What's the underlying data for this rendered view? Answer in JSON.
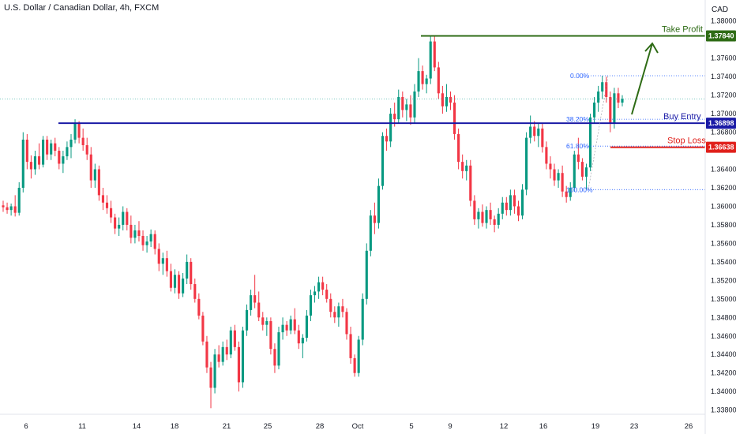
{
  "header": {
    "title": "U.S. Dollar / Canadian Dollar, 4h, FXCM",
    "currency": "CAD"
  },
  "chart_data": {
    "type": "candlestick",
    "instrument": "U.S. Dollar / Canadian Dollar",
    "timeframe": "4h",
    "source": "FXCM",
    "ylim": [
      1.3378,
      1.381
    ],
    "y_ticks": [
      "1.38000",
      "1.37840",
      "1.37600",
      "1.37400",
      "1.37200",
      "1.37000",
      "1.36898",
      "1.36800",
      "1.36638",
      "1.36400",
      "1.36200",
      "1.36000",
      "1.35800",
      "1.35600",
      "1.35400",
      "1.35200",
      "1.35000",
      "1.34800",
      "1.34600",
      "1.34400",
      "1.34200",
      "1.34000",
      "1.33800"
    ],
    "x_ticks": [
      "6",
      "11",
      "14",
      "18",
      "21",
      "25",
      "28",
      "Oct",
      "5",
      "9",
      "12",
      "16",
      "19",
      "23",
      "26"
    ],
    "levels": [
      {
        "name": "Take Profit",
        "value": 1.3784,
        "label": "1.37840",
        "color": "#2e6b15"
      },
      {
        "name": "Buy Entry",
        "value": 1.36898,
        "label": "1.36898",
        "color": "#1a1aa6"
      },
      {
        "name": "Stop Loss",
        "value": 1.36638,
        "label": "1.36638",
        "color": "#e0201b"
      }
    ],
    "fibonacci": [
      {
        "label": "0.00%",
        "value": 1.3741
      },
      {
        "label": "38.20%",
        "value": 1.3694
      },
      {
        "label": "61.80%",
        "value": 1.3665
      },
      {
        "label": "100.00%",
        "value": 1.3618
      }
    ],
    "ohlc": [
      [
        1.3601,
        1.3606,
        1.3594,
        1.3599
      ],
      [
        1.3599,
        1.3604,
        1.3592,
        1.3596
      ],
      [
        1.3596,
        1.3603,
        1.359,
        1.36
      ],
      [
        1.36,
        1.3612,
        1.3589,
        1.3593
      ],
      [
        1.3593,
        1.3626,
        1.359,
        1.362
      ],
      [
        1.362,
        1.368,
        1.3615,
        1.3672
      ],
      [
        1.3672,
        1.3678,
        1.364,
        1.3648
      ],
      [
        1.3648,
        1.3655,
        1.363,
        1.364
      ],
      [
        1.364,
        1.366,
        1.3634,
        1.3654
      ],
      [
        1.3654,
        1.3668,
        1.364,
        1.3645
      ],
      [
        1.3645,
        1.3676,
        1.3642,
        1.3672
      ],
      [
        1.3672,
        1.3676,
        1.365,
        1.3656
      ],
      [
        1.3656,
        1.3672,
        1.365,
        1.3668
      ],
      [
        1.3668,
        1.3674,
        1.3654,
        1.366
      ],
      [
        1.366,
        1.3664,
        1.364,
        1.3646
      ],
      [
        1.3646,
        1.366,
        1.3636,
        1.3654
      ],
      [
        1.3654,
        1.367,
        1.365,
        1.3664
      ],
      [
        1.3664,
        1.3678,
        1.3652,
        1.3672
      ],
      [
        1.3672,
        1.3694,
        1.3668,
        1.3689
      ],
      [
        1.3689,
        1.3692,
        1.3668,
        1.3674
      ],
      [
        1.3674,
        1.3684,
        1.366,
        1.3666
      ],
      [
        1.3666,
        1.3674,
        1.365,
        1.3656
      ],
      [
        1.3656,
        1.3664,
        1.362,
        1.3628
      ],
      [
        1.3628,
        1.3646,
        1.362,
        1.364
      ],
      [
        1.364,
        1.3644,
        1.3606,
        1.3612
      ],
      [
        1.3612,
        1.362,
        1.3596,
        1.3604
      ],
      [
        1.3604,
        1.3612,
        1.3592,
        1.3598
      ],
      [
        1.3598,
        1.3606,
        1.3582,
        1.3588
      ],
      [
        1.3588,
        1.3592,
        1.357,
        1.3576
      ],
      [
        1.3576,
        1.3588,
        1.3568,
        1.358
      ],
      [
        1.358,
        1.36,
        1.3574,
        1.3594
      ],
      [
        1.3594,
        1.3598,
        1.3574,
        1.358
      ],
      [
        1.358,
        1.359,
        1.356,
        1.3566
      ],
      [
        1.3566,
        1.358,
        1.356,
        1.3574
      ],
      [
        1.3574,
        1.3584,
        1.3562,
        1.3568
      ],
      [
        1.3568,
        1.3574,
        1.3552,
        1.3558
      ],
      [
        1.3558,
        1.3568,
        1.355,
        1.3562
      ],
      [
        1.3562,
        1.3575,
        1.3556,
        1.357
      ],
      [
        1.357,
        1.3574,
        1.3548,
        1.3554
      ],
      [
        1.3554,
        1.356,
        1.353,
        1.3538
      ],
      [
        1.3538,
        1.355,
        1.3526,
        1.3544
      ],
      [
        1.3544,
        1.3552,
        1.3524,
        1.353
      ],
      [
        1.353,
        1.3538,
        1.3508,
        1.3512
      ],
      [
        1.3512,
        1.3532,
        1.3506,
        1.3526
      ],
      [
        1.3526,
        1.353,
        1.35,
        1.3506
      ],
      [
        1.3506,
        1.3528,
        1.3502,
        1.3522
      ],
      [
        1.3522,
        1.3548,
        1.3516,
        1.354
      ],
      [
        1.354,
        1.3544,
        1.351,
        1.3516
      ],
      [
        1.3516,
        1.3522,
        1.3496,
        1.35
      ],
      [
        1.35,
        1.3506,
        1.3478,
        1.3482
      ],
      [
        1.3482,
        1.3486,
        1.345,
        1.3454
      ],
      [
        1.3454,
        1.346,
        1.342,
        1.3426
      ],
      [
        1.3426,
        1.3432,
        1.3382,
        1.3404
      ],
      [
        1.3404,
        1.3446,
        1.3398,
        1.344
      ],
      [
        1.344,
        1.345,
        1.3426,
        1.3432
      ],
      [
        1.3432,
        1.3454,
        1.3428,
        1.3448
      ],
      [
        1.3448,
        1.3456,
        1.3434,
        1.344
      ],
      [
        1.344,
        1.347,
        1.3436,
        1.3466
      ],
      [
        1.3466,
        1.3472,
        1.3444,
        1.3448
      ],
      [
        1.3448,
        1.3454,
        1.34,
        1.341
      ],
      [
        1.341,
        1.347,
        1.3404,
        1.3466
      ],
      [
        1.3466,
        1.3494,
        1.346,
        1.3488
      ],
      [
        1.3488,
        1.351,
        1.3482,
        1.3504
      ],
      [
        1.3504,
        1.3526,
        1.349,
        1.3496
      ],
      [
        1.3496,
        1.3508,
        1.3476,
        1.348
      ],
      [
        1.348,
        1.3486,
        1.3466,
        1.3472
      ],
      [
        1.3472,
        1.348,
        1.346,
        1.3476
      ],
      [
        1.3476,
        1.348,
        1.344,
        1.3446
      ],
      [
        1.3446,
        1.3452,
        1.342,
        1.3428
      ],
      [
        1.3428,
        1.347,
        1.3424,
        1.3464
      ],
      [
        1.3464,
        1.348,
        1.3456,
        1.3472
      ],
      [
        1.3472,
        1.3476,
        1.346,
        1.3466
      ],
      [
        1.3466,
        1.3482,
        1.3462,
        1.3478
      ],
      [
        1.3478,
        1.349,
        1.3462,
        1.3466
      ],
      [
        1.3466,
        1.3472,
        1.3446,
        1.3452
      ],
      [
        1.3452,
        1.3462,
        1.3436,
        1.3458
      ],
      [
        1.3458,
        1.3488,
        1.3454,
        1.3482
      ],
      [
        1.3482,
        1.351,
        1.3476,
        1.3504
      ],
      [
        1.3504,
        1.3514,
        1.3496,
        1.3508
      ],
      [
        1.3508,
        1.3524,
        1.35,
        1.3518
      ],
      [
        1.3518,
        1.3524,
        1.3504,
        1.351
      ],
      [
        1.351,
        1.3516,
        1.3496,
        1.35
      ],
      [
        1.35,
        1.3506,
        1.348,
        1.3486
      ],
      [
        1.3486,
        1.3492,
        1.3474,
        1.348
      ],
      [
        1.348,
        1.3496,
        1.347,
        1.3492
      ],
      [
        1.3492,
        1.35,
        1.348,
        1.3486
      ],
      [
        1.3486,
        1.349,
        1.3456,
        1.3462
      ],
      [
        1.3462,
        1.347,
        1.343,
        1.3436
      ],
      [
        1.3436,
        1.344,
        1.3416,
        1.342
      ],
      [
        1.342,
        1.346,
        1.3416,
        1.3456
      ],
      [
        1.3456,
        1.3506,
        1.345,
        1.35
      ],
      [
        1.35,
        1.356,
        1.3494,
        1.3552
      ],
      [
        1.3552,
        1.3596,
        1.3546,
        1.359
      ],
      [
        1.359,
        1.3604,
        1.357,
        1.3582
      ],
      [
        1.3582,
        1.363,
        1.3576,
        1.3622
      ],
      [
        1.3622,
        1.368,
        1.3618,
        1.3676
      ],
      [
        1.3676,
        1.3684,
        1.366,
        1.367
      ],
      [
        1.367,
        1.3706,
        1.3664,
        1.37
      ],
      [
        1.37,
        1.3712,
        1.3686,
        1.3694
      ],
      [
        1.3694,
        1.3726,
        1.369,
        1.3718
      ],
      [
        1.3718,
        1.3724,
        1.3696,
        1.3704
      ],
      [
        1.3704,
        1.3716,
        1.3692,
        1.371
      ],
      [
        1.371,
        1.372,
        1.3688,
        1.3696
      ],
      [
        1.3696,
        1.3732,
        1.369,
        1.3724
      ],
      [
        1.3724,
        1.376,
        1.3718,
        1.3746
      ],
      [
        1.3746,
        1.3752,
        1.3726,
        1.3732
      ],
      [
        1.3732,
        1.3742,
        1.3722,
        1.3738
      ],
      [
        1.3738,
        1.3784,
        1.3732,
        1.3778
      ],
      [
        1.3778,
        1.3784,
        1.3746,
        1.375
      ],
      [
        1.375,
        1.3756,
        1.3716,
        1.3722
      ],
      [
        1.3722,
        1.373,
        1.37,
        1.3708
      ],
      [
        1.3708,
        1.3732,
        1.3702,
        1.3718
      ],
      [
        1.3718,
        1.3724,
        1.3704,
        1.3712
      ],
      [
        1.3712,
        1.372,
        1.3672,
        1.3678
      ],
      [
        1.3678,
        1.3684,
        1.364,
        1.3648
      ],
      [
        1.3648,
        1.3656,
        1.363,
        1.3638
      ],
      [
        1.3638,
        1.365,
        1.3628,
        1.3644
      ],
      [
        1.3644,
        1.365,
        1.36,
        1.3606
      ],
      [
        1.3606,
        1.3612,
        1.358,
        1.3586
      ],
      [
        1.3586,
        1.3598,
        1.3576,
        1.3594
      ],
      [
        1.3594,
        1.3602,
        1.3578,
        1.3582
      ],
      [
        1.3582,
        1.36,
        1.3576,
        1.3596
      ],
      [
        1.3596,
        1.3604,
        1.358,
        1.3586
      ],
      [
        1.3586,
        1.359,
        1.3572,
        1.358
      ],
      [
        1.358,
        1.3598,
        1.3576,
        1.3592
      ],
      [
        1.3592,
        1.361,
        1.3586,
        1.3604
      ],
      [
        1.3604,
        1.361,
        1.359,
        1.3596
      ],
      [
        1.3596,
        1.3618,
        1.359,
        1.3612
      ],
      [
        1.3612,
        1.3618,
        1.3592,
        1.36
      ],
      [
        1.36,
        1.3606,
        1.3584,
        1.359
      ],
      [
        1.359,
        1.3624,
        1.3586,
        1.3618
      ],
      [
        1.3618,
        1.368,
        1.3612,
        1.3674
      ],
      [
        1.3674,
        1.3698,
        1.3668,
        1.3686
      ],
      [
        1.3686,
        1.3692,
        1.367,
        1.3676
      ],
      [
        1.3676,
        1.369,
        1.3664,
        1.3684
      ],
      [
        1.3684,
        1.369,
        1.3658,
        1.3664
      ],
      [
        1.3664,
        1.367,
        1.364,
        1.3646
      ],
      [
        1.3646,
        1.3654,
        1.363,
        1.364
      ],
      [
        1.364,
        1.3646,
        1.3622,
        1.3628
      ],
      [
        1.3628,
        1.364,
        1.362,
        1.3636
      ],
      [
        1.3636,
        1.3644,
        1.361,
        1.3616
      ],
      [
        1.3616,
        1.3622,
        1.3604,
        1.361
      ],
      [
        1.361,
        1.3626,
        1.3606,
        1.362
      ],
      [
        1.362,
        1.366,
        1.3616,
        1.3656
      ],
      [
        1.3656,
        1.3674,
        1.364,
        1.3648
      ],
      [
        1.3648,
        1.3652,
        1.3628,
        1.3632
      ],
      [
        1.3632,
        1.3646,
        1.3618,
        1.3642
      ],
      [
        1.3642,
        1.37,
        1.3638,
        1.3696
      ],
      [
        1.3696,
        1.3718,
        1.369,
        1.3712
      ],
      [
        1.3712,
        1.373,
        1.3702,
        1.3724
      ],
      [
        1.3724,
        1.3741,
        1.3716,
        1.3734
      ],
      [
        1.3734,
        1.374,
        1.3712,
        1.3718
      ],
      [
        1.3718,
        1.3724,
        1.368,
        1.369
      ],
      [
        1.369,
        1.3728,
        1.3684,
        1.3722
      ],
      [
        1.3722,
        1.3728,
        1.3706,
        1.3712
      ],
      [
        1.3712,
        1.372,
        1.3708,
        1.3716
      ]
    ]
  }
}
